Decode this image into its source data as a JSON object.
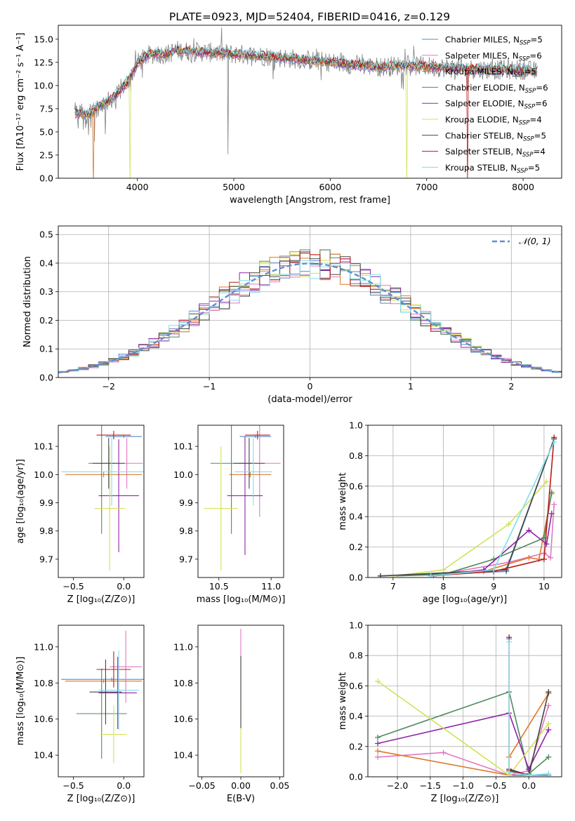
{
  "title": "PLATE=0923, MJD=52404, FIBERID=0416, z=0.129",
  "colors": {
    "Chabrier MILES": "#5a84c6",
    "Salpeter MILES": "#e377c2",
    "Kroupa MILES": "#dd7a2a",
    "Chabrier ELODIE": "#4e8a5a",
    "Salpeter ELODIE": "#8e24aa",
    "Kroupa ELODIE": "#d4e157",
    "Chabrier STELIB": "#444444",
    "Salpeter STELIB": "#b71c1c",
    "Kroupa STELIB": "#80deea",
    "data": "#808080",
    "normal": "#5b8fd4",
    "grid": "#b0b0b0"
  },
  "models": [
    {
      "name": "Chabrier MILES",
      "nssp": "5",
      "color": "#5a84c6"
    },
    {
      "name": "Salpeter MILES",
      "nssp": "6",
      "color": "#e377c2"
    },
    {
      "name": "Kroupa MILES",
      "nssp": "5",
      "color": "#dd7a2a"
    },
    {
      "name": "Chabrier ELODIE",
      "nssp": "6",
      "color": "#4e8a5a"
    },
    {
      "name": "Salpeter ELODIE",
      "nssp": "6",
      "color": "#8e24aa"
    },
    {
      "name": "Kroupa ELODIE",
      "nssp": "4",
      "color": "#d4e157"
    },
    {
      "name": "Chabrier STELIB",
      "nssp": "5",
      "color": "#444444"
    },
    {
      "name": "Salpeter STELIB",
      "nssp": "4",
      "color": "#b71c1c"
    },
    {
      "name": "Kroupa STELIB",
      "nssp": "5",
      "color": "#80deea"
    }
  ],
  "nssp_prefix": "N",
  "nssp_sub": "SSP",
  "chart_data": [
    {
      "id": "spectrum",
      "type": "line",
      "xlabel": "wavelength [Angstrom, rest frame]",
      "ylabel": "Flux [fλ10⁻¹⁷ erg cm⁻² s⁻¹ A⁻¹]",
      "xlim": [
        3180,
        8400
      ],
      "ylim": [
        0,
        16.5
      ],
      "xticks": [
        4000,
        5000,
        6000,
        7000,
        8000
      ],
      "yticks": [
        0.0,
        2.5,
        5.0,
        7.5,
        10.0,
        12.5,
        15.0
      ],
      "legend": "top-right",
      "continuum": [
        [
          3350,
          7.1
        ],
        [
          3500,
          6.9
        ],
        [
          3600,
          7.8
        ],
        [
          3700,
          8.3
        ],
        [
          3800,
          9.2
        ],
        [
          3900,
          10.4
        ],
        [
          4000,
          12.4
        ],
        [
          4100,
          13.2
        ],
        [
          4200,
          13.5
        ],
        [
          4300,
          13.3
        ],
        [
          4400,
          13.8
        ],
        [
          4500,
          13.7
        ],
        [
          4700,
          13.6
        ],
        [
          5000,
          13.4
        ],
        [
          5300,
          13.2
        ],
        [
          5600,
          12.9
        ],
        [
          5900,
          12.6
        ],
        [
          6200,
          12.3
        ],
        [
          6500,
          12.0
        ],
        [
          6800,
          12.2
        ],
        [
          7100,
          12.0
        ],
        [
          7400,
          11.8
        ],
        [
          7700,
          11.7
        ],
        [
          8000,
          11.7
        ],
        [
          8150,
          11.5
        ]
      ],
      "dips": [
        {
          "series": "Kroupa MILES",
          "x": 3540
        },
        {
          "series": "Kroupa ELODIE",
          "x": 3920
        },
        {
          "series": "Kroupa ELODIE",
          "x": 6790
        },
        {
          "series": "Salpeter STELIB",
          "x": 7420
        }
      ],
      "data_dip_x": 4940
    },
    {
      "id": "residuals",
      "type": "area",
      "xlabel": "(data-model)/error",
      "ylabel": "Normed distribution",
      "xlim": [
        -2.5,
        2.5
      ],
      "ylim": [
        0,
        0.53
      ],
      "xticks": [
        -2,
        -1,
        0,
        1,
        2
      ],
      "yticks": [
        0.0,
        0.1,
        0.2,
        0.3,
        0.4,
        0.5
      ],
      "bin_width": 0.1,
      "normal_label": "𝒩(0, 1)",
      "legend": "top-right"
    },
    {
      "id": "z_age",
      "type": "scatter",
      "xlabel": "Z [log₁₀(Z/Z⊙)]",
      "ylabel": "age  [log₁₀(age/yr)]",
      "xlim": [
        -0.65,
        0.2
      ],
      "ylim": [
        9.635,
        10.175
      ],
      "xticks": [
        -0.5,
        0.0
      ],
      "yticks": [
        9.7,
        9.8,
        9.9,
        10.0,
        10.1
      ],
      "points": [
        {
          "series": "Chabrier MILES",
          "x": 0.0,
          "y": 10.135,
          "xerr": 0.18,
          "yerr": 0.005
        },
        {
          "series": "Salpeter MILES",
          "x": 0.03,
          "y": 10.04,
          "xerr": 0.16,
          "yerr": 0.09
        },
        {
          "series": "Kroupa MILES",
          "x": -0.2,
          "y": 10.0,
          "xerr": 0.38,
          "yerr": 0.01
        },
        {
          "series": "Chabrier ELODIE",
          "x": -0.22,
          "y": 10.04,
          "xerr": 0.13,
          "yerr": 0.25
        },
        {
          "series": "Salpeter ELODIE",
          "x": -0.05,
          "y": 9.925,
          "xerr": 0.2,
          "yerr": 0.2
        },
        {
          "series": "Kroupa ELODIE",
          "x": -0.14,
          "y": 9.88,
          "xerr": 0.15,
          "yerr": 0.22
        },
        {
          "series": "Chabrier STELIB",
          "x": -0.15,
          "y": 10.04,
          "xerr": 0.16,
          "yerr": 0.09
        },
        {
          "series": "Salpeter STELIB",
          "x": -0.1,
          "y": 10.14,
          "xerr": 0.17,
          "yerr": 0.015
        },
        {
          "series": "Kroupa STELIB",
          "x": -0.12,
          "y": 10.01,
          "xerr": 0.5,
          "yerr": 0.12
        }
      ]
    },
    {
      "id": "mass_age",
      "type": "scatter",
      "xlabel": "mass [log₁₀(M/M⊙)]",
      "ylabel": "",
      "xlim": [
        10.3,
        11.12
      ],
      "ylim": [
        9.635,
        10.175
      ],
      "xticks": [
        10.5,
        11.0
      ],
      "yticks": [
        9.7,
        9.8,
        9.9,
        10.0,
        10.1
      ],
      "points": [
        {
          "series": "Chabrier MILES",
          "x": 10.85,
          "y": 10.135,
          "xerr": 0.15,
          "yerr": 0.005
        },
        {
          "series": "Salpeter MILES",
          "x": 10.89,
          "y": 10.04,
          "xerr": 0.2,
          "yerr": 0.19
        },
        {
          "series": "Kroupa MILES",
          "x": 10.8,
          "y": 10.0,
          "xerr": 0.2,
          "yerr": 0.01
        },
        {
          "series": "Chabrier ELODIE",
          "x": 10.62,
          "y": 10.04,
          "xerr": 0.2,
          "yerr": 0.25
        },
        {
          "series": "Salpeter ELODIE",
          "x": 10.75,
          "y": 9.925,
          "xerr": 0.17,
          "yerr": 0.21
        },
        {
          "series": "Kroupa ELODIE",
          "x": 10.52,
          "y": 9.88,
          "xerr": 0.16,
          "yerr": 0.22
        },
        {
          "series": "Chabrier STELIB",
          "x": 10.79,
          "y": 10.04,
          "xerr": 0.15,
          "yerr": 0.09
        },
        {
          "series": "Salpeter STELIB",
          "x": 10.87,
          "y": 10.14,
          "xerr": 0.12,
          "yerr": 0.015
        },
        {
          "series": "Kroupa STELIB",
          "x": 10.83,
          "y": 10.01,
          "xerr": 0.18,
          "yerr": 0.12
        }
      ]
    },
    {
      "id": "age_weight",
      "type": "line",
      "xlabel": "age  [log₁₀(age/yr)]",
      "ylabel": "mass weight",
      "xlim": [
        6.5,
        10.35
      ],
      "ylim": [
        0,
        1.0
      ],
      "xticks": [
        7,
        8,
        9,
        10
      ],
      "yticks": [
        0.0,
        0.2,
        0.4,
        0.6,
        0.8,
        1.0
      ],
      "series": [
        {
          "name": "Chabrier MILES",
          "x": [
            6.75,
            9.25,
            10.2
          ],
          "y": [
            0.01,
            0.04,
            0.91
          ]
        },
        {
          "name": "Salpeter MILES",
          "x": [
            7.75,
            9.3,
            10.0,
            10.13,
            10.2
          ],
          "y": [
            0.01,
            0.1,
            0.16,
            0.13,
            0.48
          ]
        },
        {
          "name": "Kroupa MILES",
          "x": [
            7.8,
            8.8,
            9.7,
            9.9,
            10.15
          ],
          "y": [
            0.01,
            0.04,
            0.13,
            0.12,
            0.55
          ]
        },
        {
          "name": "Chabrier ELODIE",
          "x": [
            7.0,
            8.0,
            9.0,
            10.0,
            10.15
          ],
          "y": [
            0.01,
            0.02,
            0.12,
            0.26,
            0.56
          ]
        },
        {
          "name": "Salpeter ELODIE",
          "x": [
            7.8,
            8.8,
            9.7,
            10.05,
            10.15
          ],
          "y": [
            0.01,
            0.05,
            0.31,
            0.22,
            0.42
          ]
        },
        {
          "name": "Kroupa ELODIE",
          "x": [
            7.0,
            8.0,
            9.3,
            10.05
          ],
          "y": [
            0.01,
            0.05,
            0.35,
            0.63
          ]
        },
        {
          "name": "Chabrier STELIB",
          "x": [
            6.75,
            9.25,
            10.2
          ],
          "y": [
            0.01,
            0.05,
            0.91
          ]
        },
        {
          "name": "Salpeter STELIB",
          "x": [
            7.75,
            9.0,
            10.0,
            10.2
          ],
          "y": [
            0.01,
            0.04,
            0.12,
            0.92
          ]
        },
        {
          "name": "Kroupa STELIB",
          "x": [
            7.75,
            9.0,
            10.2
          ],
          "y": [
            0.01,
            0.05,
            0.89
          ]
        }
      ]
    },
    {
      "id": "z_mass",
      "type": "scatter",
      "xlabel": "Z [log₁₀(Z/Z⊙)]",
      "ylabel": "mass [log₁₀(M/M⊙)]",
      "xlim": [
        -0.65,
        0.2
      ],
      "ylim": [
        10.28,
        11.12
      ],
      "xticks": [
        -0.5,
        0.0
      ],
      "yticks": [
        10.4,
        10.6,
        10.8,
        11.0
      ],
      "points": [
        {
          "series": "Chabrier MILES",
          "x": -0.12,
          "y": 10.82,
          "xerr": 0.5,
          "yerr": 0.01
        },
        {
          "series": "Salpeter MILES",
          "x": 0.02,
          "y": 10.89,
          "xerr": 0.16,
          "yerr": 0.2
        },
        {
          "series": "Kroupa MILES",
          "x": -0.2,
          "y": 10.81,
          "xerr": 0.38,
          "yerr": 0.01
        },
        {
          "series": "Chabrier ELODIE",
          "x": -0.22,
          "y": 10.63,
          "xerr": 0.25,
          "yerr": 0.25
        },
        {
          "series": "Salpeter ELODIE",
          "x": -0.06,
          "y": 10.745,
          "xerr": 0.19,
          "yerr": 0.2
        },
        {
          "series": "Kroupa ELODIE",
          "x": -0.1,
          "y": 10.515,
          "xerr": 0.13,
          "yerr": 0.16
        },
        {
          "series": "Chabrier STELIB",
          "x": -0.18,
          "y": 10.75,
          "xerr": 0.16,
          "yerr": 0.18
        },
        {
          "series": "Salpeter STELIB",
          "x": -0.1,
          "y": 10.875,
          "xerr": 0.17,
          "yerr": 0.1
        },
        {
          "series": "Kroupa STELIB",
          "x": -0.05,
          "y": 10.76,
          "xerr": 0.2,
          "yerr": 0.22
        }
      ]
    },
    {
      "id": "ebv_mass",
      "type": "scatter",
      "xlabel": "E(B-V)",
      "ylabel": "",
      "xlim": [
        -0.055,
        0.055
      ],
      "ylim": [
        10.28,
        11.12
      ],
      "xticks": [
        -0.05,
        0.0,
        0.05
      ],
      "yticks": [
        10.4,
        10.6,
        10.8,
        11.0
      ],
      "points": [
        {
          "series": "Salpeter MILES",
          "x": 0.0,
          "y": 10.9,
          "xerr": 0.0,
          "yerr": 0.2
        },
        {
          "series": "Kroupa ELODIE",
          "x": 0.0,
          "y": 10.5,
          "xerr": 0.0,
          "yerr": 0.2
        },
        {
          "series": "Chabrier STELIB",
          "x": 0.0,
          "y": 10.75,
          "xerr": 0.0,
          "yerr": 0.2
        }
      ]
    },
    {
      "id": "z_weight",
      "type": "line",
      "xlabel": "Z [log₁₀(Z/Z⊙)]",
      "ylabel": "mass weight",
      "xlim": [
        -2.45,
        0.5
      ],
      "ylim": [
        0,
        1.0
      ],
      "xticks": [
        -2.0,
        -1.5,
        -1.0,
        -0.5,
        0.0
      ],
      "yticks": [
        0.0,
        0.2,
        0.4,
        0.6,
        0.8,
        1.0
      ],
      "series": [
        {
          "name": "Chabrier MILES",
          "x": [
            -0.3,
            -0.3,
            0.0,
            0.3
          ],
          "y": [
            0.91,
            0.01,
            0.01,
            0.01
          ]
        },
        {
          "name": "Salpeter MILES",
          "x": [
            -2.3,
            -1.3,
            -0.3,
            0.0,
            0.3
          ],
          "y": [
            0.13,
            0.16,
            0.01,
            0.04,
            0.47
          ]
        },
        {
          "name": "Kroupa MILES",
          "x": [
            -2.3,
            -0.3,
            -0.3,
            0.3
          ],
          "y": [
            0.17,
            0.01,
            0.13,
            0.55
          ]
        },
        {
          "name": "Chabrier ELODIE",
          "x": [
            -2.3,
            -0.3,
            0.0,
            0.3
          ],
          "y": [
            0.26,
            0.56,
            0.02,
            0.13
          ]
        },
        {
          "name": "Salpeter ELODIE",
          "x": [
            -2.3,
            -0.3,
            0.0,
            0.3
          ],
          "y": [
            0.22,
            0.42,
            0.05,
            0.31
          ]
        },
        {
          "name": "Kroupa ELODIE",
          "x": [
            -2.3,
            -0.3,
            0.3
          ],
          "y": [
            0.63,
            0.01,
            0.35
          ]
        },
        {
          "name": "Chabrier STELIB",
          "x": [
            -0.3,
            0.0,
            0.3
          ],
          "y": [
            0.05,
            0.01,
            0.56
          ]
        },
        {
          "name": "Salpeter STELIB",
          "x": [
            -0.3,
            -0.3,
            0.0
          ],
          "y": [
            0.92,
            0.04,
            0.01
          ]
        },
        {
          "name": "Kroupa STELIB",
          "x": [
            -0.3,
            -0.3,
            0.0,
            0.3
          ],
          "y": [
            0.89,
            0.03,
            0.01,
            0.02
          ]
        }
      ]
    }
  ]
}
